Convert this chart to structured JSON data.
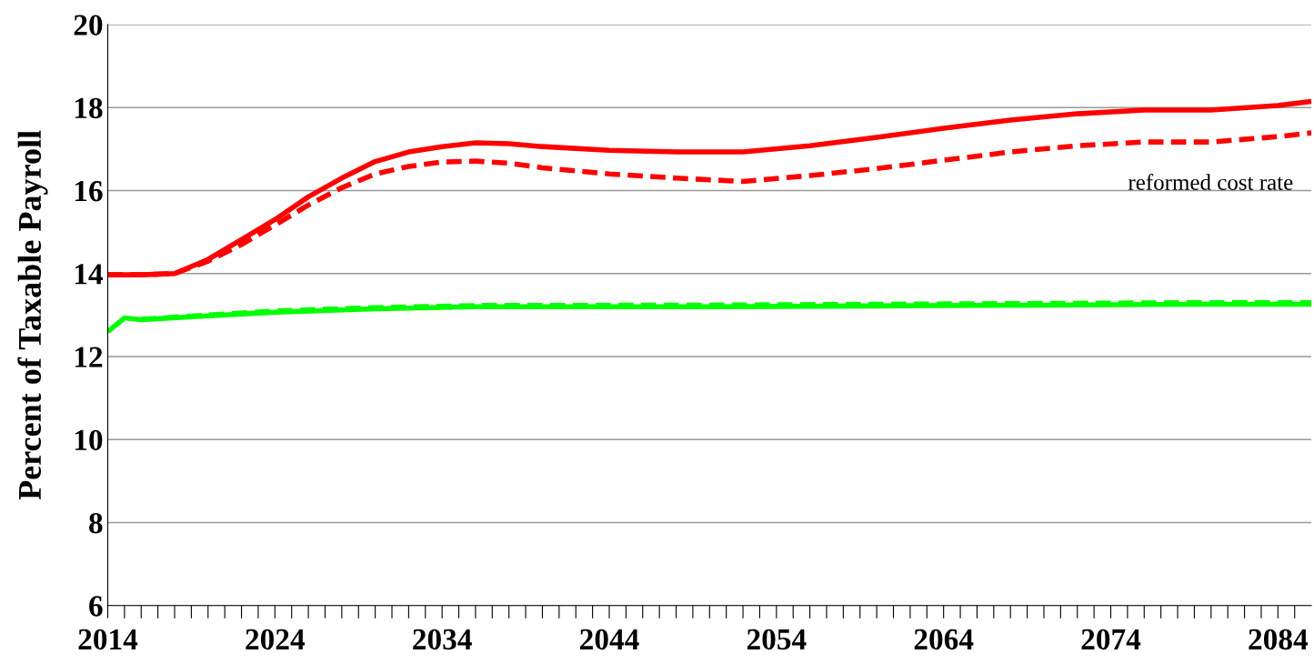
{
  "chart_data": {
    "type": "line",
    "ylabel": "Percent of Taxable Payroll",
    "xlim": [
      2014,
      2086
    ],
    "ylim": [
      6,
      20
    ],
    "xticks": [
      2014,
      {
        "value": 2015,
        "label": null
      },
      {
        "value": 2016,
        "label": null
      },
      {
        "value": 2017,
        "label": null
      },
      {
        "value": 2018,
        "label": null
      },
      {
        "value": 2019,
        "label": null
      },
      {
        "value": 2020,
        "label": null
      },
      {
        "value": 2021,
        "label": null
      },
      {
        "value": 2022,
        "label": null
      },
      {
        "value": 2023,
        "label": null
      },
      2024,
      {
        "value": 2025,
        "label": null
      },
      {
        "value": 2026,
        "label": null
      },
      {
        "value": 2027,
        "label": null
      },
      {
        "value": 2028,
        "label": null
      },
      {
        "value": 2029,
        "label": null
      },
      {
        "value": 2030,
        "label": null
      },
      {
        "value": 2031,
        "label": null
      },
      {
        "value": 2032,
        "label": null
      },
      {
        "value": 2033,
        "label": null
      },
      2034,
      {
        "value": 2035,
        "label": null
      },
      {
        "value": 2036,
        "label": null
      },
      {
        "value": 2037,
        "label": null
      },
      {
        "value": 2038,
        "label": null
      },
      {
        "value": 2039,
        "label": null
      },
      {
        "value": 2040,
        "label": null
      },
      {
        "value": 2041,
        "label": null
      },
      {
        "value": 2042,
        "label": null
      },
      {
        "value": 2043,
        "label": null
      },
      2044,
      {
        "value": 2045,
        "label": null
      },
      {
        "value": 2046,
        "label": null
      },
      {
        "value": 2047,
        "label": null
      },
      {
        "value": 2048,
        "label": null
      },
      {
        "value": 2049,
        "label": null
      },
      {
        "value": 2050,
        "label": null
      },
      {
        "value": 2051,
        "label": null
      },
      {
        "value": 2052,
        "label": null
      },
      {
        "value": 2053,
        "label": null
      },
      2054,
      {
        "value": 2055,
        "label": null
      },
      {
        "value": 2056,
        "label": null
      },
      {
        "value": 2057,
        "label": null
      },
      {
        "value": 2058,
        "label": null
      },
      {
        "value": 2059,
        "label": null
      },
      {
        "value": 2060,
        "label": null
      },
      {
        "value": 2061,
        "label": null
      },
      {
        "value": 2062,
        "label": null
      },
      {
        "value": 2063,
        "label": null
      },
      2064,
      {
        "value": 2065,
        "label": null
      },
      {
        "value": 2066,
        "label": null
      },
      {
        "value": 2067,
        "label": null
      },
      {
        "value": 2068,
        "label": null
      },
      {
        "value": 2069,
        "label": null
      },
      {
        "value": 2070,
        "label": null
      },
      {
        "value": 2071,
        "label": null
      },
      {
        "value": 2072,
        "label": null
      },
      {
        "value": 2073,
        "label": null
      },
      2074,
      {
        "value": 2075,
        "label": null
      },
      {
        "value": 2076,
        "label": null
      },
      {
        "value": 2077,
        "label": null
      },
      {
        "value": 2078,
        "label": null
      },
      {
        "value": 2079,
        "label": null
      },
      {
        "value": 2080,
        "label": null
      },
      {
        "value": 2081,
        "label": null
      },
      {
        "value": 2082,
        "label": null
      },
      {
        "value": 2083,
        "label": null
      },
      2084,
      {
        "value": 2085,
        "label": null
      }
    ],
    "yticks": [
      6,
      8,
      10,
      12,
      14,
      16,
      18,
      20
    ],
    "grid": "y",
    "marker": "none",
    "annotations": [
      "reformed cost rate"
    ],
    "series": [
      {
        "color": "#ff0000",
        "line_style": "solid",
        "x": [
          2014,
          2016,
          2018,
          2020,
          2022,
          2024,
          2026,
          2028,
          2030,
          2032,
          2034,
          2036,
          2038,
          2040,
          2044,
          2048,
          2052,
          2056,
          2060,
          2064,
          2068,
          2072,
          2076,
          2080,
          2084,
          2086
        ],
        "values": [
          13.97,
          13.97,
          14.0,
          14.34,
          14.82,
          15.3,
          15.85,
          16.3,
          16.7,
          16.93,
          17.06,
          17.15,
          17.13,
          17.06,
          16.97,
          16.93,
          16.93,
          17.08,
          17.28,
          17.5,
          17.7,
          17.85,
          17.94,
          17.94,
          18.05,
          18.15
        ]
      },
      {
        "color": "#ff0000",
        "line_style": "dashed",
        "x": [
          2014,
          2016,
          2018,
          2020,
          2022,
          2024,
          2026,
          2028,
          2030,
          2032,
          2034,
          2036,
          2038,
          2040,
          2044,
          2048,
          2052,
          2056,
          2060,
          2064,
          2068,
          2072,
          2076,
          2080,
          2084,
          2086
        ],
        "values": [
          13.97,
          13.97,
          14.0,
          14.3,
          14.7,
          15.17,
          15.65,
          16.07,
          16.4,
          16.58,
          16.69,
          16.71,
          16.66,
          16.55,
          16.4,
          16.3,
          16.22,
          16.36,
          16.53,
          16.73,
          16.93,
          17.08,
          17.17,
          17.17,
          17.3,
          17.39
        ]
      },
      {
        "color": "#00ff00",
        "line_style": "solid",
        "x": [
          2014,
          2015,
          2016,
          2020,
          2024,
          2030,
          2036,
          2050,
          2060,
          2070,
          2080,
          2086
        ],
        "values": [
          12.6,
          12.93,
          12.89,
          12.98,
          13.07,
          13.15,
          13.2,
          13.2,
          13.22,
          13.24,
          13.26,
          13.26
        ]
      },
      {
        "color": "#00ff00",
        "line_style": "dashed",
        "x": [
          2016,
          2020,
          2024,
          2030,
          2036,
          2050,
          2060,
          2070,
          2080,
          2086
        ],
        "values": [
          12.9,
          13.0,
          13.1,
          13.18,
          13.23,
          13.24,
          13.26,
          13.28,
          13.3,
          13.3
        ]
      }
    ]
  }
}
